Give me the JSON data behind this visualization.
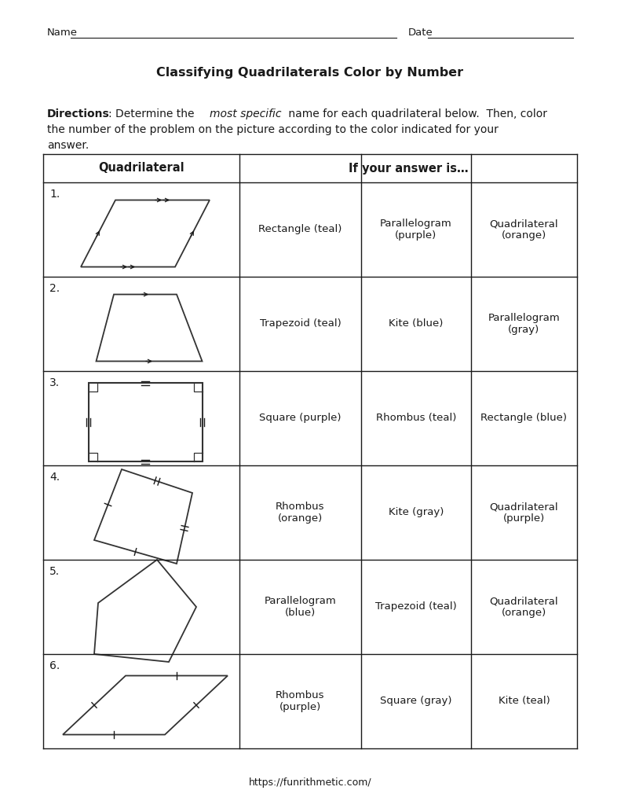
{
  "title": "Classifying Quadrilaterals Color by Number",
  "name_label": "Name",
  "date_label": "Date",
  "header_col1": "Quadrilateral",
  "header_col2": "If your answer is…",
  "footer": "https://funrithmetic.com/",
  "rows": [
    {
      "num": "1.",
      "options": [
        "Rectangle (teal)",
        "Parallelogram\n(purple)",
        "Quadrilateral\n(orange)"
      ]
    },
    {
      "num": "2.",
      "options": [
        "Trapezoid (teal)",
        "Kite (blue)",
        "Parallelogram\n(gray)"
      ]
    },
    {
      "num": "3.",
      "options": [
        "Square (purple)",
        "Rhombus (teal)",
        "Rectangle (blue)"
      ]
    },
    {
      "num": "4.",
      "options": [
        "Rhombus\n(orange)",
        "Kite (gray)",
        "Quadrilateral\n(purple)"
      ]
    },
    {
      "num": "5.",
      "options": [
        "Parallelogram\n(blue)",
        "Trapezoid (teal)",
        "Quadrilateral\n(orange)"
      ]
    },
    {
      "num": "6.",
      "options": [
        "Rhombus\n(purple)",
        "Square (gray)",
        "Kite (teal)"
      ]
    }
  ],
  "background_color": "#ffffff",
  "text_color": "#1a1a1a",
  "line_color": "#1a1a1a"
}
